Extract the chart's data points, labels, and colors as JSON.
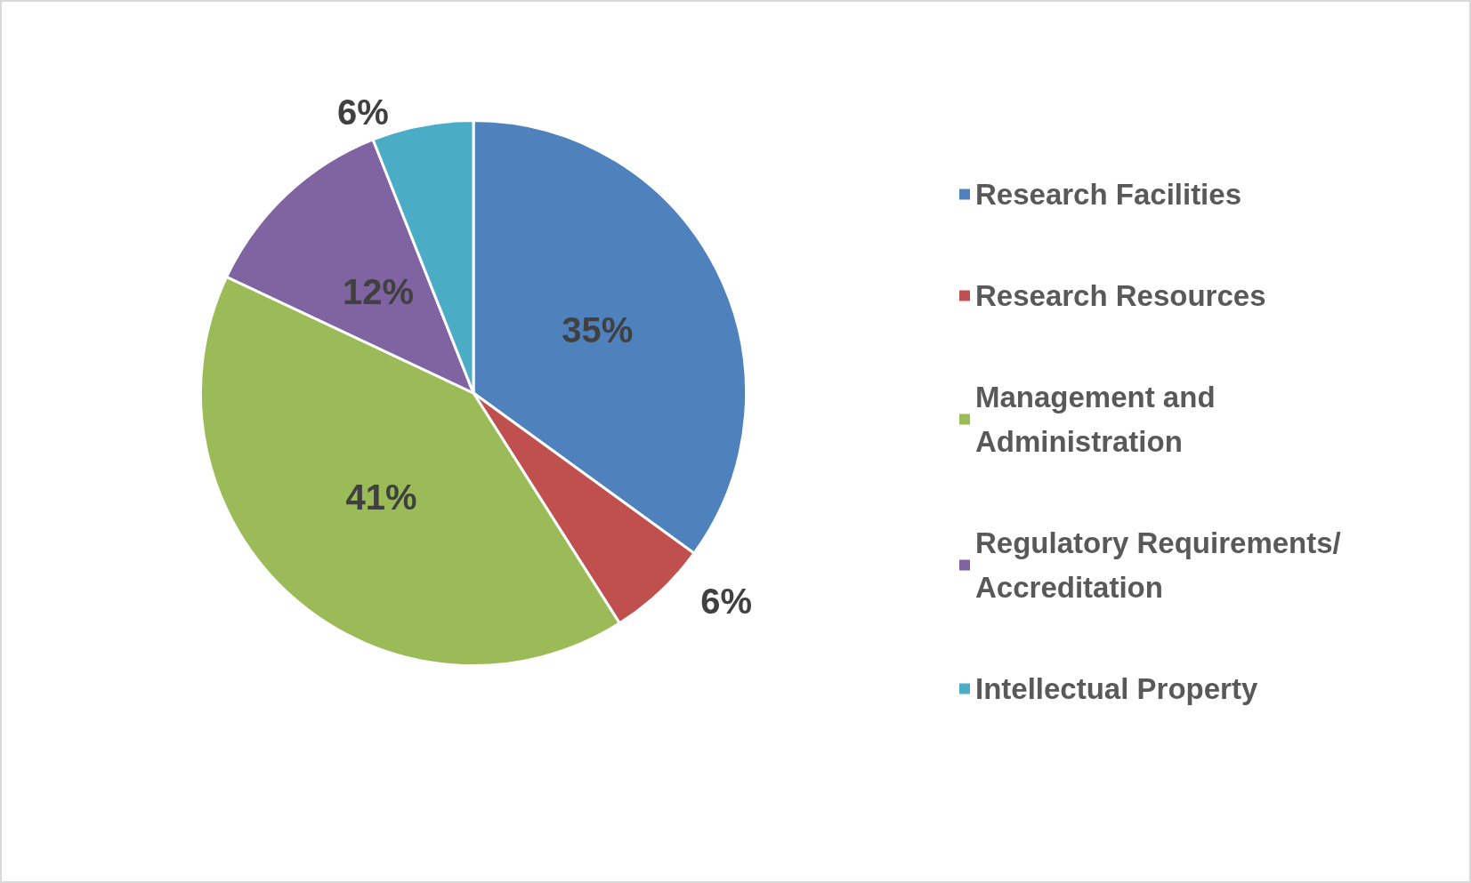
{
  "chart_data": {
    "type": "pie",
    "categories": [
      "Research Facilities",
      "Research Resources",
      "Management and Administration",
      "Regulatory Requirements/Accreditation",
      "Intellectual Property"
    ],
    "values": [
      35,
      6,
      41,
      12,
      6
    ],
    "colors": [
      "#4f81bd",
      "#c0504d",
      "#9bbb59",
      "#8064a2",
      "#4bacc6"
    ],
    "value_labels": [
      "35%",
      "6%",
      "41%",
      "12%",
      "6%"
    ],
    "legend": "right"
  }
}
